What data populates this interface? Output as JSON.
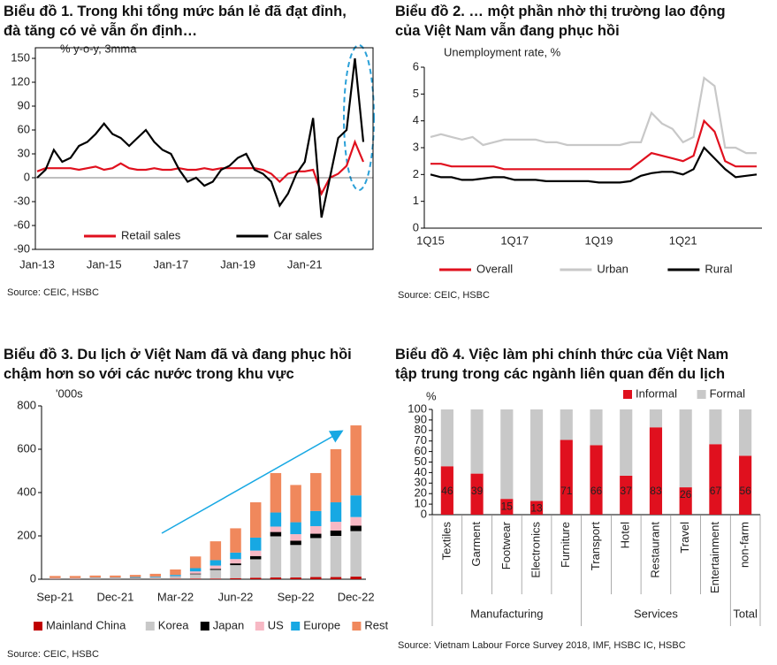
{
  "chart_data": [
    {
      "type": "line",
      "title": [
        "Biểu đồ 1. Trong khi tổng mức bán lẻ đã đạt đỉnh,",
        "đà tăng có vẻ vẫn ổn định…"
      ],
      "ylabel": "% y-o-y, 3mma",
      "source": "Source: CEIC, HSBC",
      "frame": true,
      "legend": "lower center",
      "categories": [
        "Jan-13",
        null,
        null,
        null,
        null,
        null,
        null,
        null,
        "Jan-15",
        null,
        null,
        null,
        null,
        null,
        null,
        null,
        "Jan-17",
        null,
        null,
        null,
        null,
        null,
        null,
        null,
        "Jan-19",
        null,
        null,
        null,
        null,
        null,
        null,
        null,
        "Jan-21",
        null,
        null,
        null,
        null,
        null,
        null,
        null
      ],
      "ylim": [
        -90,
        150
      ],
      "yticks": [
        -90,
        -60,
        -30,
        0,
        30,
        60,
        90,
        120,
        150
      ],
      "series": [
        {
          "name": "Retail sales",
          "color": "#e0101e",
          "values": [
            8,
            12,
            12,
            12,
            12,
            10,
            12,
            14,
            10,
            12,
            18,
            12,
            10,
            10,
            12,
            10,
            10,
            12,
            10,
            10,
            12,
            10,
            12,
            12,
            12,
            12,
            12,
            10,
            5,
            -5,
            5,
            8,
            8,
            10,
            -20,
            0,
            5,
            15,
            45,
            20
          ]
        },
        {
          "name": "Car sales",
          "color": "#000000",
          "values": [
            0,
            10,
            35,
            20,
            25,
            40,
            45,
            55,
            68,
            55,
            50,
            40,
            50,
            60,
            45,
            35,
            30,
            10,
            -5,
            0,
            -10,
            -5,
            10,
            15,
            25,
            30,
            10,
            5,
            -5,
            -35,
            -20,
            5,
            20,
            75,
            -50,
            0,
            50,
            60,
            150,
            45
          ]
        }
      ]
    },
    {
      "type": "line",
      "title": [
        "Biểu đồ 2. … một phần nhờ thị trường lao động",
        "của Việt Nam vẫn đang phục hồi"
      ],
      "ylabel": "Unemployment rate, %",
      "source": "Source: CEIC, HSBC",
      "frame": false,
      "legend": "below",
      "categories": [
        "1Q15",
        null,
        null,
        null,
        null,
        null,
        null,
        null,
        "1Q17",
        null,
        null,
        null,
        null,
        null,
        null,
        null,
        "1Q19",
        null,
        null,
        null,
        null,
        null,
        null,
        null,
        "1Q21",
        null,
        null,
        null,
        null,
        null,
        null,
        null
      ],
      "ylim": [
        0,
        6
      ],
      "yticks": [
        0,
        1,
        2,
        3,
        4,
        5,
        6
      ],
      "series": [
        {
          "name": "Overall",
          "color": "#e0101e",
          "values": [
            2.4,
            2.4,
            2.3,
            2.3,
            2.3,
            2.3,
            2.3,
            2.2,
            2.2,
            2.2,
            2.2,
            2.2,
            2.2,
            2.2,
            2.2,
            2.2,
            2.2,
            2.2,
            2.2,
            2.2,
            2.5,
            2.8,
            2.7,
            2.6,
            2.5,
            2.7,
            4.0,
            3.6,
            2.5,
            2.3,
            2.3,
            2.3
          ]
        },
        {
          "name": "Urban",
          "color": "#c8c8c8",
          "values": [
            3.4,
            3.5,
            3.4,
            3.3,
            3.4,
            3.1,
            3.2,
            3.3,
            3.3,
            3.3,
            3.3,
            3.2,
            3.2,
            3.1,
            3.1,
            3.1,
            3.1,
            3.1,
            3.1,
            3.2,
            3.2,
            4.3,
            3.9,
            3.7,
            3.2,
            3.4,
            5.6,
            5.3,
            3.0,
            3.0,
            2.8,
            2.8
          ]
        },
        {
          "name": "Rural",
          "color": "#000000",
          "values": [
            2.0,
            1.9,
            1.9,
            1.8,
            1.8,
            1.85,
            1.9,
            1.9,
            1.8,
            1.8,
            1.8,
            1.75,
            1.75,
            1.75,
            1.75,
            1.75,
            1.7,
            1.7,
            1.7,
            1.75,
            1.95,
            2.05,
            2.1,
            2.1,
            2.0,
            2.2,
            3.0,
            2.6,
            2.2,
            1.9,
            1.95,
            2.0
          ]
        }
      ]
    },
    {
      "type": "stacked_bar",
      "title": [
        "Biểu đồ 3. Du lịch ở Việt Nam đã và đang phục hồi",
        "chậm hơn so với các nước trong khu vực"
      ],
      "ylabel": "'000s",
      "source": "Source: CEIC, HSBC",
      "frame": false,
      "legend": "below",
      "categories": [
        "Sep-21",
        null,
        null,
        "Dec-21",
        null,
        null,
        "Mar-22",
        null,
        null,
        "Jun-22",
        null,
        null,
        "Sep-22",
        null,
        null,
        "Dec-22"
      ],
      "ylim": [
        0,
        800
      ],
      "yticks": [
        0,
        200,
        400,
        600,
        800
      ],
      "series": [
        {
          "name": "Mainland China",
          "color": "#c00000",
          "values": [
            1,
            1,
            1,
            1,
            1,
            1,
            2,
            3,
            3,
            5,
            7,
            8,
            8,
            10,
            10,
            12
          ]
        },
        {
          "name": "Korea",
          "color": "#c8c8c8",
          "values": [
            2,
            2,
            3,
            3,
            4,
            5,
            8,
            20,
            40,
            60,
            85,
            190,
            150,
            180,
            190,
            210
          ]
        },
        {
          "name": "Japan",
          "color": "#000000",
          "values": [
            0,
            0,
            0,
            0,
            1,
            1,
            1,
            3,
            5,
            8,
            15,
            20,
            20,
            20,
            25,
            25
          ]
        },
        {
          "name": "US",
          "color": "#f7b8c4",
          "values": [
            1,
            1,
            1,
            1,
            1,
            2,
            3,
            10,
            15,
            20,
            25,
            25,
            30,
            35,
            40,
            40
          ]
        },
        {
          "name": "Europe",
          "color": "#17a8e3",
          "values": [
            1,
            1,
            2,
            2,
            3,
            3,
            6,
            15,
            25,
            30,
            60,
            65,
            55,
            70,
            90,
            100
          ]
        },
        {
          "name": "Rest",
          "color": "#f0885c",
          "values": [
            10,
            10,
            10,
            10,
            10,
            13,
            25,
            54,
            87,
            112,
            163,
            182,
            172,
            175,
            245,
            323
          ]
        }
      ]
    },
    {
      "type": "stacked_bar",
      "title": [
        "Biểu đồ 4. Việc làm phi chính thức của Việt Nam",
        "tập trung trong các ngành liên quan đến du lịch"
      ],
      "ylabel": "%",
      "source": "Source: Vietnam Labour Force Survey 2018, IMF, HSBC IC, HSBC",
      "frame": false,
      "legend": "top",
      "categories": [
        "Textiles",
        "Garment",
        "Footwear",
        "Electronics",
        "Furniture",
        "Transport",
        "Hotel",
        "Restaurant",
        "Travel",
        "Entertainment",
        "non-farm"
      ],
      "groups": [
        "Manufacturing",
        "Services",
        "Total"
      ],
      "ylim": [
        0,
        100
      ],
      "yticks": [
        0,
        10,
        20,
        30,
        40,
        50,
        60,
        70,
        80,
        90,
        100
      ],
      "series": [
        {
          "name": "Informal",
          "color": "#e0101e",
          "show_values": true,
          "values": [
            46,
            39,
            15,
            13,
            71,
            66,
            37,
            83,
            26,
            67,
            56
          ]
        },
        {
          "name": "Formal",
          "color": "#c8c8c8",
          "values": [
            54,
            61,
            85,
            87,
            29,
            34,
            63,
            17,
            74,
            33,
            44
          ]
        }
      ]
    }
  ]
}
